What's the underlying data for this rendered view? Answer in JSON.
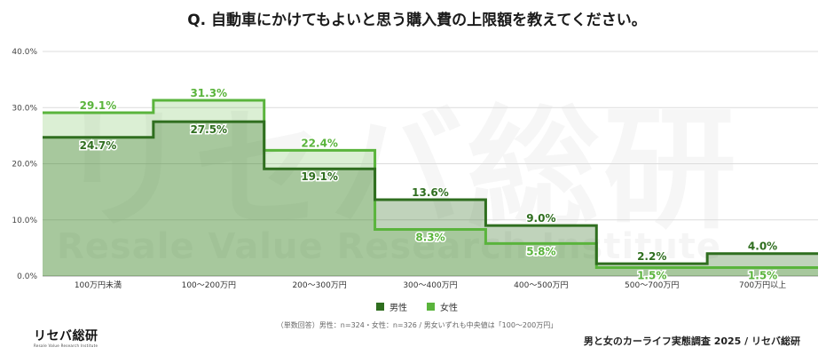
{
  "title": "Q. 自動車にかけてもよいと思う購入費の上限額を教えてください。",
  "chart_data": {
    "type": "line",
    "categories": [
      "100万円未満",
      "100〜200万円",
      "200〜300万円",
      "300〜400万円",
      "400〜500万円",
      "500〜700万円",
      "700万円以上"
    ],
    "series": [
      {
        "name": "男性",
        "values": [
          24.7,
          27.5,
          19.1,
          13.6,
          9.0,
          2.2,
          4.0
        ],
        "color": "#2f6e1f"
      },
      {
        "name": "女性",
        "values": [
          29.1,
          31.3,
          22.4,
          8.3,
          5.8,
          1.5,
          1.5
        ],
        "color": "#5ab43c"
      }
    ],
    "y_ticks": [
      "0.0%",
      "10.0%",
      "20.0%",
      "30.0%",
      "40.0%"
    ],
    "ylim": [
      0,
      40
    ],
    "grid": true,
    "legend_position": "bottom"
  },
  "watermark": {
    "main": "リセバ総研",
    "sub": "Resale Value Research Institute"
  },
  "note": "（単数回答）男性：n=324・女性：n=326 / 男女いずれも中央値は「100〜200万円」",
  "logo": {
    "main": "リセバ総研",
    "sub": "Resale Value Research Institute"
  },
  "source": "男と女のカーライフ実態調査 2025 / リセバ総研"
}
